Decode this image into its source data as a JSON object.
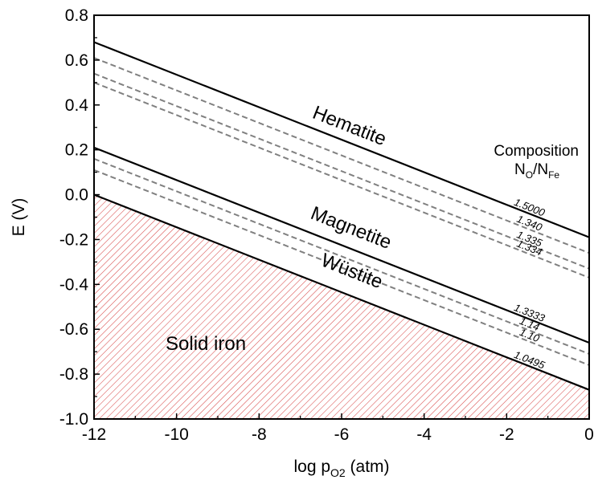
{
  "chart_data": {
    "type": "line",
    "xlabel": "log p",
    "xlabel_sub": "O2",
    "xlabel_suffix": " (atm)",
    "ylabel": "E (V)",
    "xlim": [
      -12,
      0
    ],
    "ylim": [
      -1.0,
      0.8
    ],
    "x_ticks": [
      "-12",
      "-10",
      "-8",
      "-6",
      "-4",
      "-2",
      "0"
    ],
    "y_ticks": [
      "-1.0",
      "-0.8",
      "-0.6",
      "-0.4",
      "-0.2",
      "0.0",
      "0.2",
      "0.4",
      "0.6",
      "0.8"
    ],
    "grid": false,
    "series": [
      {
        "name": "1.5000",
        "style": "solid",
        "x": [
          -12,
          0
        ],
        "y": [
          0.68,
          -0.19
        ]
      },
      {
        "name": "1.340",
        "style": "dashed",
        "x": [
          -12,
          0
        ],
        "y": [
          0.61,
          -0.26
        ]
      },
      {
        "name": "1.335",
        "style": "dashed",
        "x": [
          -12,
          0
        ],
        "y": [
          0.54,
          -0.33
        ]
      },
      {
        "name": "1.334",
        "style": "dashed",
        "x": [
          -12,
          0
        ],
        "y": [
          0.5,
          -0.37
        ]
      },
      {
        "name": "1.3333",
        "style": "solid",
        "x": [
          -12,
          0
        ],
        "y": [
          0.21,
          -0.66
        ]
      },
      {
        "name": "1.14",
        "style": "dashed",
        "x": [
          -12,
          0
        ],
        "y": [
          0.16,
          -0.71
        ]
      },
      {
        "name": "1.10",
        "style": "dashed",
        "x": [
          -12,
          0
        ],
        "y": [
          0.11,
          -0.76
        ]
      },
      {
        "name": "1.0495",
        "style": "solid",
        "x": [
          -12,
          0
        ],
        "y": [
          0.0,
          -0.87
        ]
      }
    ],
    "region_labels": [
      "Hematite",
      "Magnetite",
      "Wüstite",
      "Solid iron"
    ],
    "legend_title": "Composition",
    "legend_subtitle": {
      "n1": "N",
      "s1": "O",
      "slash": "/",
      "n2": "N",
      "s2": "Fe"
    },
    "fill_region": {
      "label": "Solid iron",
      "color": "#e06060",
      "pattern": "diagonal-hatch"
    }
  }
}
